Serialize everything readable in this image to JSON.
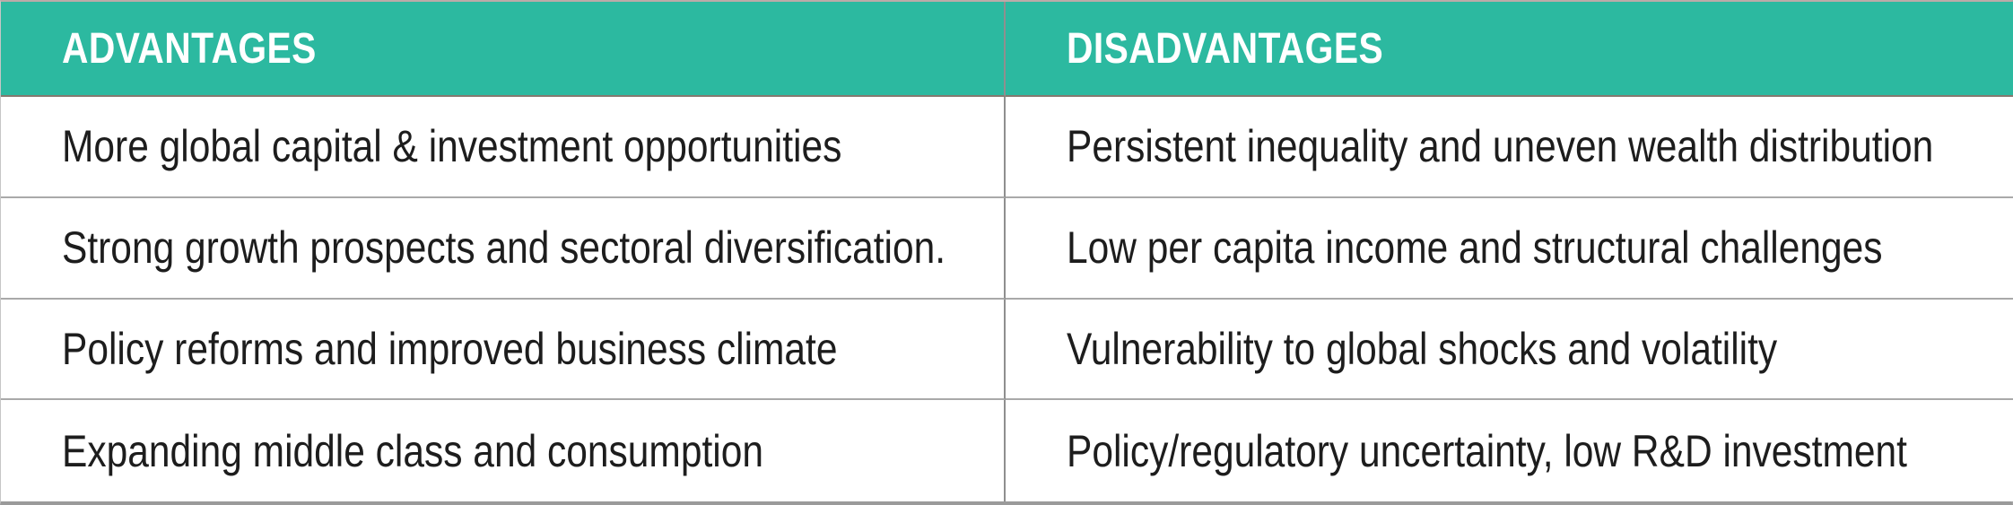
{
  "page": {
    "kind": "comparison-table-slide"
  },
  "table": {
    "headers": {
      "advantages": "ADVANTAGES",
      "disadvantages": "DISADVANTAGES"
    },
    "rows": [
      {
        "advantage": "More global capital & investment opportunities",
        "disadvantage": "Persistent inequality and uneven wealth distribution"
      },
      {
        "advantage": "Strong growth prospects and sectoral diversification.",
        "disadvantage": "Low per capita income and structural challenges"
      },
      {
        "advantage": "Policy reforms and improved business climate",
        "disadvantage": "Vulnerability to global shocks and volatility"
      },
      {
        "advantage": "Expanding middle class and consumption",
        "disadvantage": "Policy/regulatory uncertainty, low R&D investment"
      }
    ]
  },
  "colors": {
    "header_background": "#2cb9a0",
    "header_text": "#ffffff",
    "body_text": "#1d1d1d",
    "row_divider": "#a9a9a9",
    "column_divider": "#8f8f8f",
    "outer_border": "#9a9a9a"
  }
}
